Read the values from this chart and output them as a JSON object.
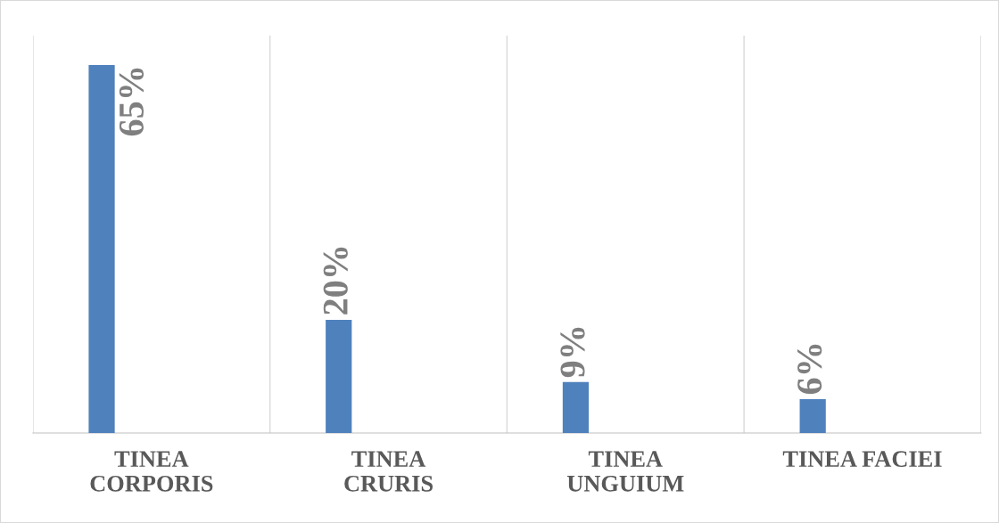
{
  "chart_data": {
    "type": "bar",
    "categories": [
      "TINEA\nCORPORIS",
      "TINEA\nCRURIS",
      "TINEA\nUNGUIUM",
      "TINEA FACIEI"
    ],
    "values": [
      65,
      20,
      9,
      6
    ],
    "color": "#4f81bd",
    "value_labels": [
      "65%",
      "20%",
      "9%",
      "6%"
    ],
    "grid": "x"
  }
}
